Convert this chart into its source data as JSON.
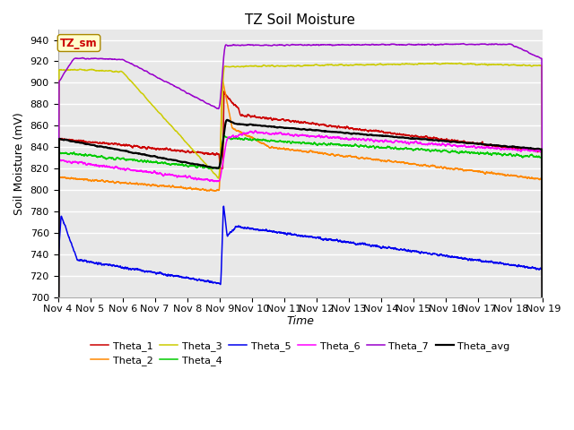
{
  "title": "TZ Soil Moisture",
  "xlabel": "Time",
  "ylabel": "Soil Moisture (mV)",
  "ylim": [
    700,
    950
  ],
  "yticks": [
    700,
    720,
    740,
    760,
    780,
    800,
    820,
    840,
    860,
    880,
    900,
    920,
    940
  ],
  "date_labels": [
    "Nov 4",
    "Nov 5",
    "Nov 6",
    "Nov 7",
    "Nov 8",
    "Nov 9",
    "Nov 10",
    "Nov 11",
    "Nov 12",
    "Nov 13",
    "Nov 14",
    "Nov 15",
    "Nov 16",
    "Nov 17",
    "Nov 18",
    "Nov 19"
  ],
  "legend_label_box": "TZ_sm",
  "series_colors": {
    "Theta_1": "#cc0000",
    "Theta_2": "#ff8800",
    "Theta_3": "#cccc00",
    "Theta_4": "#00cc00",
    "Theta_5": "#0000ee",
    "Theta_6": "#ff00ff",
    "Theta_7": "#9900cc",
    "Theta_avg": "#000000"
  },
  "background_color": "#e8e8e8",
  "grid_color": "#ffffff",
  "title_fontsize": 11,
  "axis_fontsize": 9,
  "tick_fontsize": 8
}
